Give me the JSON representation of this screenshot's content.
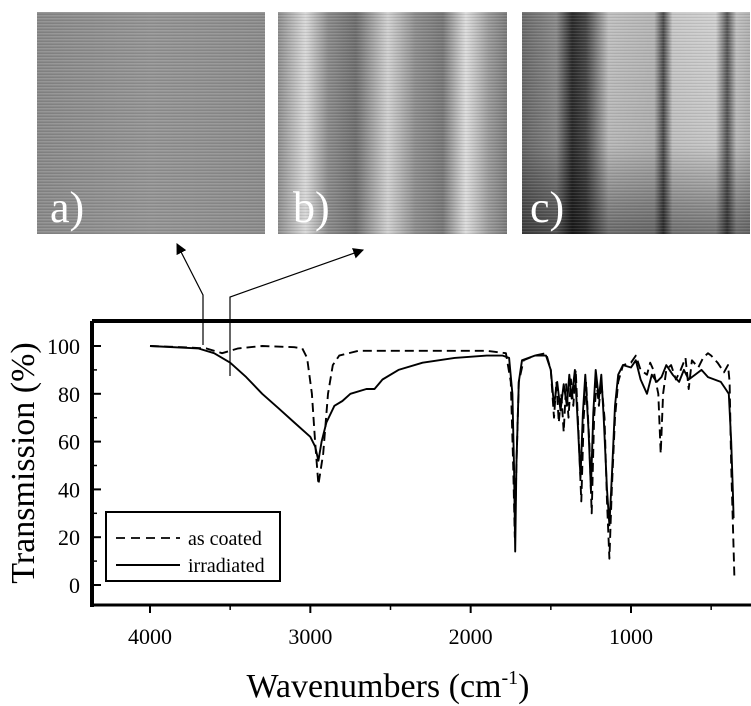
{
  "panels": [
    {
      "label": "a)",
      "style": "uniform"
    },
    {
      "label": "b)",
      "style": "bands"
    },
    {
      "label": "c)",
      "style": "dark-lines"
    }
  ],
  "colors": {
    "line": "#000000",
    "background": "#ffffff",
    "panel_text": "#ffffff"
  },
  "chart_data": {
    "type": "line",
    "xlabel": "Wavenumbers (cm",
    "xlabel_superscript": "-1",
    "xlabel_suffix": ")",
    "ylabel": "Transmission (%)",
    "xlim": [
      4000,
      300
    ],
    "ylim": [
      0,
      100
    ],
    "x_ticks": [
      4000,
      3000,
      2000,
      1000
    ],
    "y_ticks": [
      0,
      20,
      40,
      60,
      80,
      100
    ],
    "legend_position": "bottom-left",
    "grid": false,
    "series": [
      {
        "name": "as coated",
        "dash": "dashed",
        "points": [
          [
            4000,
            100
          ],
          [
            3800,
            99.5
          ],
          [
            3650,
            99
          ],
          [
            3600,
            98
          ],
          [
            3550,
            97
          ],
          [
            3500,
            98
          ],
          [
            3450,
            99
          ],
          [
            3300,
            100
          ],
          [
            3100,
            99.5
          ],
          [
            3050,
            99
          ],
          [
            3020,
            95
          ],
          [
            2990,
            80
          ],
          [
            2970,
            60
          ],
          [
            2950,
            42
          ],
          [
            2920,
            55
          ],
          [
            2890,
            80
          ],
          [
            2860,
            92
          ],
          [
            2820,
            96
          ],
          [
            2700,
            98
          ],
          [
            2500,
            98
          ],
          [
            2200,
            98
          ],
          [
            1900,
            98
          ],
          [
            1780,
            97
          ],
          [
            1750,
            85
          ],
          [
            1735,
            50
          ],
          [
            1725,
            20
          ],
          [
            1715,
            50
          ],
          [
            1700,
            85
          ],
          [
            1670,
            94
          ],
          [
            1600,
            96
          ],
          [
            1530,
            97
          ],
          [
            1500,
            90
          ],
          [
            1480,
            70
          ],
          [
            1465,
            85
          ],
          [
            1450,
            68
          ],
          [
            1435,
            80
          ],
          [
            1420,
            64
          ],
          [
            1405,
            84
          ],
          [
            1390,
            70
          ],
          [
            1375,
            86
          ],
          [
            1360,
            75
          ],
          [
            1345,
            90
          ],
          [
            1325,
            60
          ],
          [
            1310,
            35
          ],
          [
            1295,
            70
          ],
          [
            1280,
            85
          ],
          [
            1260,
            60
          ],
          [
            1245,
            30
          ],
          [
            1230,
            70
          ],
          [
            1215,
            85
          ],
          [
            1200,
            75
          ],
          [
            1185,
            85
          ],
          [
            1165,
            70
          ],
          [
            1150,
            35
          ],
          [
            1135,
            11
          ],
          [
            1120,
            40
          ],
          [
            1100,
            70
          ],
          [
            1080,
            85
          ],
          [
            1050,
            92
          ],
          [
            1000,
            93
          ],
          [
            970,
            96
          ],
          [
            940,
            90
          ],
          [
            900,
            88
          ],
          [
            880,
            93
          ],
          [
            860,
            90
          ],
          [
            830,
            80
          ],
          [
            815,
            55
          ],
          [
            800,
            80
          ],
          [
            780,
            90
          ],
          [
            750,
            92
          ],
          [
            720,
            86
          ],
          [
            690,
            90
          ],
          [
            660,
            95
          ],
          [
            640,
            82
          ],
          [
            620,
            94
          ],
          [
            580,
            91
          ],
          [
            550,
            95
          ],
          [
            520,
            97
          ],
          [
            500,
            96
          ],
          [
            460,
            93
          ],
          [
            420,
            89
          ],
          [
            395,
            92
          ],
          [
            385,
            85
          ],
          [
            375,
            50
          ],
          [
            360,
            15
          ],
          [
            355,
            3
          ]
        ]
      },
      {
        "name": "irradiated",
        "dash": "solid",
        "points": [
          [
            4000,
            100
          ],
          [
            3700,
            99
          ],
          [
            3600,
            97
          ],
          [
            3500,
            93
          ],
          [
            3400,
            87
          ],
          [
            3300,
            80
          ],
          [
            3200,
            74
          ],
          [
            3100,
            68
          ],
          [
            3000,
            62
          ],
          [
            2970,
            58
          ],
          [
            2950,
            52
          ],
          [
            2930,
            60
          ],
          [
            2900,
            68
          ],
          [
            2850,
            75
          ],
          [
            2800,
            77
          ],
          [
            2750,
            80
          ],
          [
            2650,
            82
          ],
          [
            2600,
            82
          ],
          [
            2550,
            86
          ],
          [
            2450,
            90
          ],
          [
            2300,
            93
          ],
          [
            2100,
            95
          ],
          [
            1900,
            96
          ],
          [
            1800,
            96
          ],
          [
            1760,
            95
          ],
          [
            1740,
            80
          ],
          [
            1730,
            50
          ],
          [
            1722,
            14
          ],
          [
            1715,
            50
          ],
          [
            1700,
            85
          ],
          [
            1680,
            94
          ],
          [
            1600,
            96
          ],
          [
            1530,
            96
          ],
          [
            1500,
            90
          ],
          [
            1480,
            75
          ],
          [
            1460,
            85
          ],
          [
            1440,
            73
          ],
          [
            1420,
            84
          ],
          [
            1400,
            75
          ],
          [
            1385,
            88
          ],
          [
            1370,
            78
          ],
          [
            1350,
            90
          ],
          [
            1330,
            65
          ],
          [
            1315,
            45
          ],
          [
            1300,
            72
          ],
          [
            1285,
            88
          ],
          [
            1265,
            65
          ],
          [
            1250,
            40
          ],
          [
            1235,
            72
          ],
          [
            1220,
            90
          ],
          [
            1200,
            78
          ],
          [
            1185,
            88
          ],
          [
            1170,
            70
          ],
          [
            1150,
            40
          ],
          [
            1135,
            25
          ],
          [
            1120,
            45
          ],
          [
            1100,
            75
          ],
          [
            1080,
            88
          ],
          [
            1050,
            92
          ],
          [
            1000,
            91
          ],
          [
            970,
            94
          ],
          [
            940,
            86
          ],
          [
            900,
            80
          ],
          [
            870,
            88
          ],
          [
            840,
            85
          ],
          [
            810,
            87
          ],
          [
            780,
            92
          ],
          [
            740,
            88
          ],
          [
            700,
            85
          ],
          [
            670,
            90
          ],
          [
            640,
            86
          ],
          [
            600,
            88
          ],
          [
            560,
            90
          ],
          [
            520,
            87
          ],
          [
            480,
            86
          ],
          [
            440,
            85
          ],
          [
            410,
            82
          ],
          [
            390,
            80
          ],
          [
            375,
            60
          ],
          [
            365,
            40
          ],
          [
            360,
            28
          ]
        ]
      }
    ],
    "annotations": [
      {
        "target_panel": 0,
        "anchor_x": 3500,
        "anchor_y": 98
      },
      {
        "target_panel": 1,
        "anchor_x": 3350,
        "anchor_y": 86
      }
    ]
  }
}
